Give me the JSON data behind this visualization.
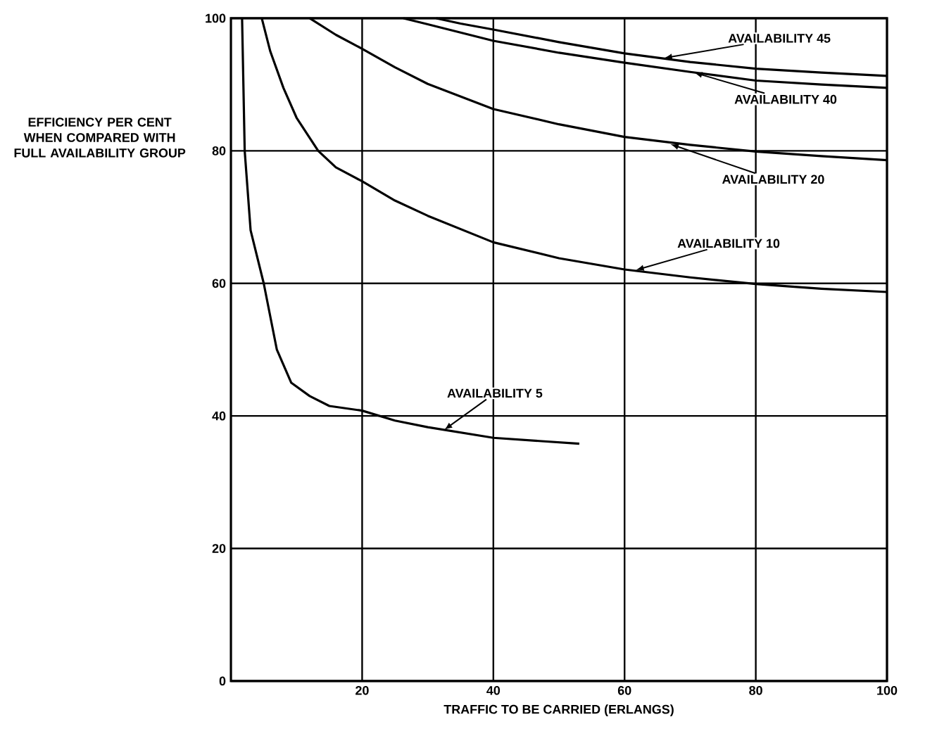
{
  "chart_data": {
    "type": "line",
    "xlabel": "TRAFFIC TO BE CARRIED (ERLANGS)",
    "ylabel": "EFFICIENCY PER CENT WHEN COMPARED WITH FULL AVAILABILITY GROUP",
    "xlim": [
      0,
      100
    ],
    "ylim": [
      0,
      100
    ],
    "xticks": [
      20,
      40,
      60,
      80,
      100
    ],
    "yticks": [
      0,
      20,
      40,
      60,
      80,
      100
    ],
    "grid": true,
    "line_style": "solid",
    "marker": "none",
    "series": [
      {
        "color": "#000000",
        "x": [
          1.7,
          2.1,
          3,
          5,
          7,
          9.2,
          12,
          15,
          20,
          25,
          30,
          40,
          53.1
        ],
        "values": [
          100,
          80,
          68,
          60,
          50,
          45,
          43,
          41.5,
          40.8,
          39.3,
          38.3,
          36.7,
          35.8
        ]
      },
      {
        "color": "#000000",
        "x": [
          4.7,
          6,
          8,
          10,
          13.3,
          16,
          20,
          25,
          30,
          40,
          50,
          60,
          70,
          80,
          90,
          100
        ],
        "values": [
          100,
          95,
          89.5,
          85,
          80,
          77.5,
          75.4,
          72.5,
          70.2,
          66.2,
          63.8,
          62.1,
          60.9,
          59.9,
          59.2,
          58.7
        ]
      },
      {
        "color": "#000000",
        "x": [
          12,
          16,
          20,
          25,
          30,
          40,
          50,
          60,
          70,
          80,
          90,
          100
        ],
        "values": [
          100,
          97.5,
          95.4,
          92.6,
          90.1,
          86.3,
          84,
          82.1,
          80.9,
          79.9,
          79.2,
          78.6
        ]
      },
      {
        "color": "#000000",
        "x": [
          26.3,
          30,
          40,
          50,
          60,
          70,
          80,
          90,
          100
        ],
        "values": [
          100,
          99.1,
          96.6,
          94.8,
          93.3,
          91.9,
          90.6,
          90,
          89.5
        ]
      },
      {
        "color": "#000000",
        "x": [
          31.3,
          35,
          40,
          50,
          60,
          70,
          80,
          90,
          100
        ],
        "values": [
          100,
          99.2,
          98.3,
          96.4,
          94.7,
          93.4,
          92.4,
          91.8,
          91.3
        ]
      }
    ],
    "annotations": [
      {
        "text": "AVAILABILITY 5",
        "x": 32.5,
        "y": 37.9
      },
      {
        "text": "AVAILABILITY 10",
        "x": 61.7,
        "y": 62
      },
      {
        "text": "AVAILABILITY 20",
        "x": 67,
        "y": 81
      },
      {
        "text": "AVAILABILITY 40",
        "x": 70.6,
        "y": 91.8
      },
      {
        "text": "AVAILABILITY 45",
        "x": 66,
        "y": 94
      }
    ]
  }
}
